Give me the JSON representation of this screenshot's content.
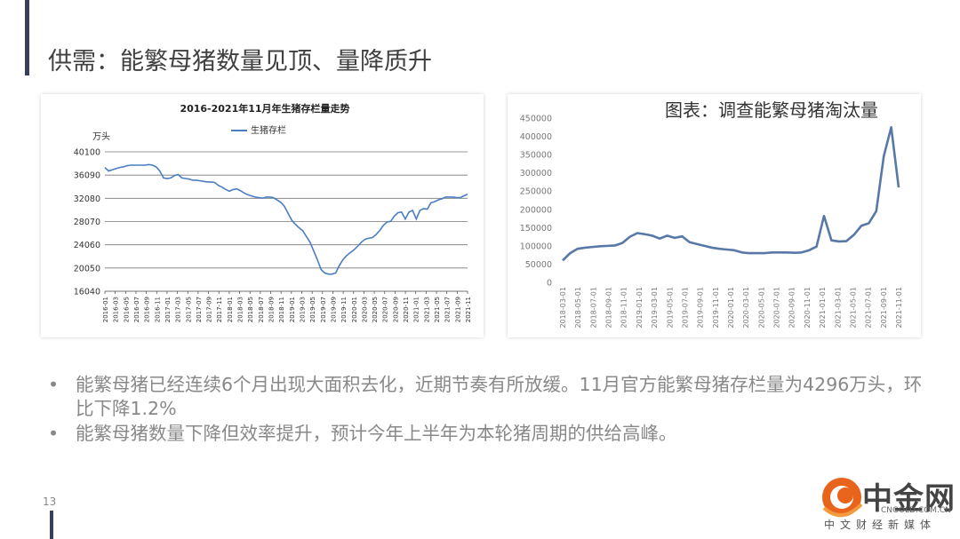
{
  "slide": {
    "title": "供需：能繁母猪数量见顶、量降质升",
    "page_number": "13",
    "bullets": [
      {
        "marker": "•",
        "text": "能繁母猪已经连续6个月出现大面积去化，近期节奏有所放缓。11月官方能繁母猪存栏量为4296万头，环比下降1.2%"
      },
      {
        "marker": "•",
        "text": "能繁母猪数量下降但效率提升，预计今年上半年为本轮猪周期的供给高峰。"
      }
    ]
  },
  "logo": {
    "name": "中金网",
    "url": "CNGOLD.COM.CN",
    "subtitle": "中文财经新媒体"
  },
  "colors": {
    "line_left": "#4a7ec2",
    "line_right": "#5878a8",
    "accent": "#3a3f5c",
    "logo_orange": "#e8631c"
  },
  "chart_data": [
    {
      "type": "line",
      "title": "2016-2021年11月年生猪存栏量走势",
      "ylabel": "万头",
      "legend": {
        "position": "top-center",
        "entries": [
          "生猪存栏"
        ]
      },
      "grid": "horizontal",
      "ylim": [
        16040,
        40100
      ],
      "yticks": [
        16040,
        20050,
        24060,
        28070,
        32080,
        36090,
        40100
      ],
      "x_tick_labels": [
        "2016-01",
        "2016-03",
        "2016-05",
        "2016-07",
        "2016-09",
        "2016-11",
        "2017-01",
        "2017-03",
        "2017-05",
        "2017-07",
        "2017-09",
        "2017-11",
        "2018-01",
        "2018-03",
        "2018-05",
        "2018-07",
        "2018-09",
        "2018-11",
        "2019-01",
        "2019-03",
        "2019-05",
        "2019-07",
        "2019-09",
        "2019-11",
        "2020-01",
        "2020-03",
        "2020-05",
        "2020-07",
        "2020-09",
        "2020-11",
        "2021-01",
        "2021-03",
        "2021-05",
        "2021-07",
        "2021-09",
        "2021-11"
      ],
      "series": [
        {
          "name": "生猪存栏",
          "values": [
            37400,
            36800,
            37000,
            37200,
            37400,
            37500,
            37700,
            37800,
            37800,
            37800,
            37800,
            37800,
            37900,
            37800,
            37500,
            36800,
            35600,
            35500,
            35600,
            36000,
            36200,
            35600,
            35500,
            35400,
            35200,
            35200,
            35100,
            35000,
            34900,
            34900,
            34800,
            34300,
            34000,
            33600,
            33300,
            33600,
            33700,
            33400,
            33000,
            32700,
            32500,
            32300,
            32200,
            32100,
            32300,
            32300,
            32200,
            31800,
            31400,
            30700,
            29500,
            28300,
            27600,
            27000,
            26500,
            25500,
            24500,
            23000,
            21500,
            19800,
            19200,
            19000,
            19000,
            19200,
            20500,
            21500,
            22200,
            22700,
            23200,
            23800,
            24500,
            25000,
            25200,
            25300,
            25800,
            26500,
            27400,
            28000,
            28100,
            29000,
            29600,
            29700,
            28500,
            29700,
            30000,
            28500,
            30000,
            30300,
            30200,
            31300,
            31500,
            31800,
            32000,
            32300,
            32300,
            32300,
            32200,
            32200,
            32500,
            32800
          ]
        }
      ]
    },
    {
      "type": "line",
      "title": "图表：调查能繁母猪淘汰量",
      "ylim": [
        0,
        450000
      ],
      "yticks": [
        0,
        50000,
        100000,
        150000,
        200000,
        250000,
        300000,
        350000,
        400000,
        450000
      ],
      "grid": "none",
      "x_tick_labels": [
        "2018-03-01",
        "2018-05-01",
        "2018-07-01",
        "2018-09-01",
        "2018-11-01",
        "2019-01-01",
        "2019-03-01",
        "2019-05-01",
        "2019-07-01",
        "2019-09-01",
        "2019-11-01",
        "2020-01-01",
        "2020-03-01",
        "2020-05-01",
        "2020-07-01",
        "2020-09-01",
        "2020-11-01",
        "2021-01-01",
        "2021-03-01",
        "2021-05-01",
        "2021-07-01",
        "2021-09-01",
        "2021-11-01"
      ],
      "series": [
        {
          "name": "",
          "values": [
            60000,
            80000,
            92000,
            95000,
            97000,
            99000,
            100000,
            101000,
            108000,
            125000,
            135000,
            132000,
            128000,
            120000,
            128000,
            122000,
            126000,
            110000,
            105000,
            100000,
            95000,
            92000,
            90000,
            88000,
            82000,
            80000,
            80000,
            80000,
            82000,
            82000,
            82000,
            81000,
            82000,
            88000,
            98000,
            182000,
            115000,
            112000,
            113000,
            130000,
            155000,
            162000,
            195000,
            345000,
            425000,
            260000
          ]
        }
      ]
    }
  ]
}
